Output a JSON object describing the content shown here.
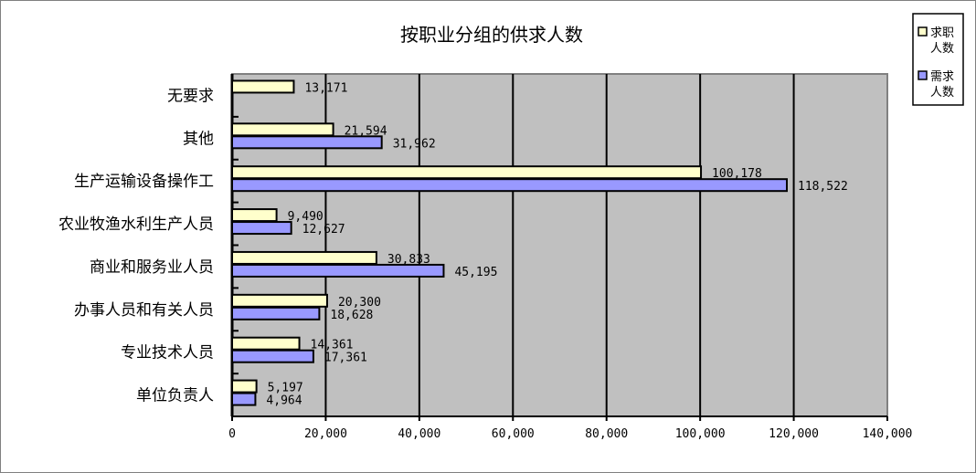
{
  "chart_data": {
    "type": "bar",
    "orientation": "horizontal",
    "title": "按职业分组的供求人数",
    "categories": [
      "无要求",
      "其他",
      "生产运输设备操作工",
      "农业牧渔水利生产人员",
      "商业和服务业人员",
      "办事人员和有关人员",
      "专业技术人员",
      "单位负责人"
    ],
    "series": [
      {
        "name": "求职人数",
        "legend_lines": [
          "求职",
          "人数"
        ],
        "color": "#FFFFCC",
        "values": [
          13171,
          21594,
          100178,
          9490,
          30833,
          20300,
          14361,
          5197
        ],
        "labels": [
          "13,171",
          "21,594",
          "100,178",
          "9,490",
          "30,833",
          "20,300",
          "14,361",
          "5,197"
        ]
      },
      {
        "name": "需求人数",
        "legend_lines": [
          "需求",
          "人数"
        ],
        "color": "#9999FF",
        "values": [
          null,
          31962,
          118522,
          12627,
          45195,
          18628,
          17361,
          4964
        ],
        "labels": [
          null,
          "31,962",
          "118,522",
          "12,627",
          "45,195",
          "18,628",
          "17,361",
          "4,964"
        ]
      }
    ],
    "xlim": [
      0,
      140000
    ],
    "xticks": [
      0,
      20000,
      40000,
      60000,
      80000,
      100000,
      120000,
      140000
    ],
    "xtick_labels": [
      "0",
      "20,000",
      "40,000",
      "60,000",
      "80,000",
      "100,000",
      "120,000",
      "140,000"
    ],
    "grid": "vertical major",
    "plot_background": "#C0C0C0",
    "legend_position": "top-right"
  }
}
